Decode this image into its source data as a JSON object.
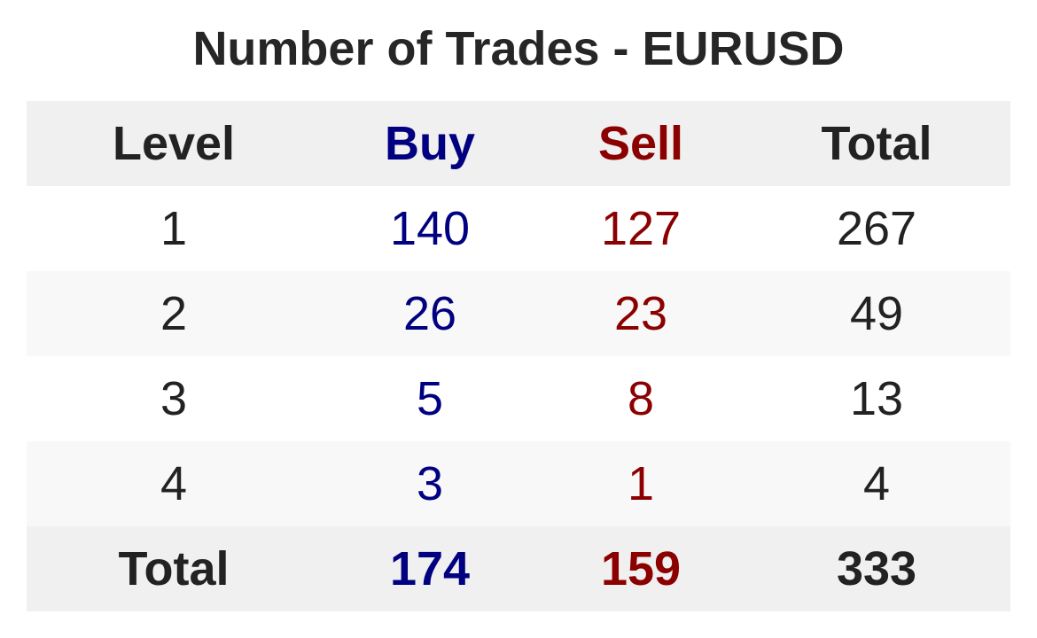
{
  "colors": {
    "buy": "#000080",
    "sell": "#8b0000",
    "text": "#262626",
    "header_bg": "#f0f0f0",
    "alt_bg": "#f8f8f8"
  },
  "chart_data": {
    "type": "table",
    "title": "Number of Trades - EURUSD",
    "columns": [
      "Level",
      "Buy",
      "Sell",
      "Total"
    ],
    "rows": [
      [
        "1",
        "140",
        "127",
        "267"
      ],
      [
        "2",
        "26",
        "23",
        "49"
      ],
      [
        "3",
        "5",
        "8",
        "13"
      ],
      [
        "4",
        "3",
        "1",
        "4"
      ]
    ],
    "total_row": [
      "Total",
      "174",
      "159",
      "333"
    ]
  }
}
